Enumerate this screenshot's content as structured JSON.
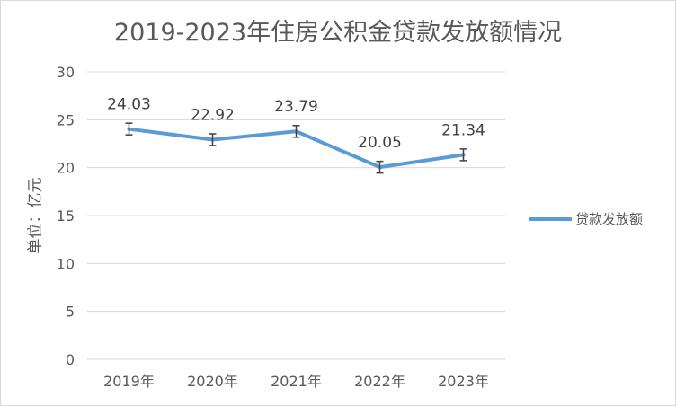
{
  "chart_data": {
    "type": "line",
    "title": "2019-2023年住房公积金贷款发放额情况",
    "ylabel": "单位：亿元",
    "xlabel": "",
    "categories": [
      "2019年",
      "2020年",
      "2021年",
      "2022年",
      "2023年"
    ],
    "series": [
      {
        "name": "贷款发放额",
        "values": [
          24.03,
          22.92,
          23.79,
          20.05,
          21.34
        ],
        "color": "#5b9bd5"
      }
    ],
    "data_labels": [
      "24.03",
      "22.92",
      "23.79",
      "20.05",
      "21.34"
    ],
    "ylim": [
      0,
      30
    ],
    "yticks": [
      0,
      5,
      10,
      15,
      20,
      25,
      30
    ],
    "error_bars": true,
    "grid": true,
    "legend": "right"
  }
}
